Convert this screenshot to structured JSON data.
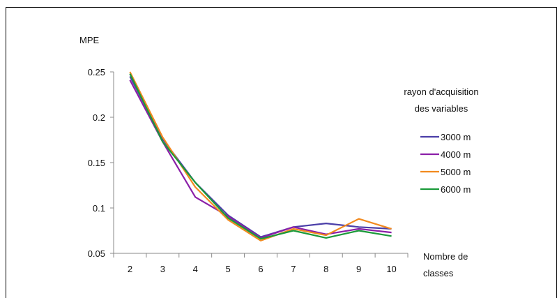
{
  "chart_data": {
    "type": "line",
    "ylabel": "MPE",
    "xlabel_lines": [
      "Nombre de",
      "classes"
    ],
    "legend_title_lines": [
      "rayon d'acquisition",
      "des variables"
    ],
    "legend_position": "right",
    "grid": false,
    "x": [
      2,
      3,
      4,
      5,
      6,
      7,
      8,
      9,
      10
    ],
    "ylim": [
      0.05,
      0.25
    ],
    "yticks": [
      0.25,
      0.2,
      0.15,
      0.1,
      0.05
    ],
    "ytick_labels": [
      "0.25",
      "0.2",
      "0.15",
      "0.1",
      "0.05"
    ],
    "series": [
      {
        "name": "3000 m",
        "color": "#4b3fa8",
        "values": [
          0.245,
          0.176,
          0.128,
          0.092,
          0.068,
          0.079,
          0.083,
          0.079,
          0.077
        ]
      },
      {
        "name": "4000 m",
        "color": "#8b1fa8",
        "values": [
          0.241,
          0.173,
          0.112,
          0.091,
          0.067,
          0.079,
          0.071,
          0.077,
          0.073
        ]
      },
      {
        "name": "5000 m",
        "color": "#f28a1f",
        "values": [
          0.25,
          0.178,
          0.123,
          0.087,
          0.064,
          0.077,
          0.07,
          0.088,
          0.077
        ]
      },
      {
        "name": "6000 m",
        "color": "#1b9a3a",
        "values": [
          0.248,
          0.173,
          0.128,
          0.089,
          0.066,
          0.075,
          0.067,
          0.075,
          0.069
        ]
      }
    ]
  }
}
